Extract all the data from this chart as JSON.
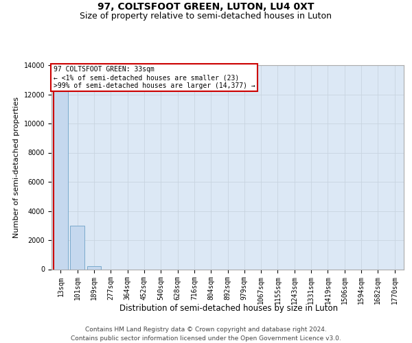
{
  "title": "97, COLTSFOOT GREEN, LUTON, LU4 0XT",
  "subtitle": "Size of property relative to semi-detached houses in Luton",
  "xlabel": "Distribution of semi-detached houses by size in Luton",
  "ylabel": "Number of semi-detached properties",
  "annotation_title": "97 COLTSFOOT GREEN: 33sqm",
  "annotation_line1": "← <1% of semi-detached houses are smaller (23)",
  "annotation_line2": ">99% of semi-detached houses are larger (14,377) →",
  "footer_line1": "Contains HM Land Registry data © Crown copyright and database right 2024.",
  "footer_line2": "Contains public sector information licensed under the Open Government Licence v3.0.",
  "categories": [
    "13sqm",
    "101sqm",
    "189sqm",
    "277sqm",
    "364sqm",
    "452sqm",
    "540sqm",
    "628sqm",
    "716sqm",
    "804sqm",
    "892sqm",
    "979sqm",
    "1067sqm",
    "1155sqm",
    "1243sqm",
    "1331sqm",
    "1419sqm",
    "1506sqm",
    "1594sqm",
    "1682sqm",
    "1770sqm"
  ],
  "values": [
    13000,
    3000,
    200,
    0,
    0,
    0,
    0,
    0,
    0,
    0,
    0,
    0,
    0,
    0,
    0,
    0,
    0,
    0,
    0,
    0,
    0
  ],
  "bar_color": "#c5d8ee",
  "bar_edge_color": "#7aaacc",
  "highlight_color": "#cc0000",
  "ylim_max": 14000,
  "ytick_values": [
    0,
    2000,
    4000,
    6000,
    8000,
    10000,
    12000,
    14000
  ],
  "annotation_box_edgecolor": "#cc0000",
  "grid_color": "#c8d4e0",
  "bg_color": "#dce8f5",
  "fig_bg_color": "#ffffff",
  "title_fontsize": 10,
  "subtitle_fontsize": 9,
  "ylabel_fontsize": 8,
  "xlabel_fontsize": 8.5,
  "tick_fontsize": 7,
  "annotation_fontsize": 7,
  "footer_fontsize": 6.5
}
